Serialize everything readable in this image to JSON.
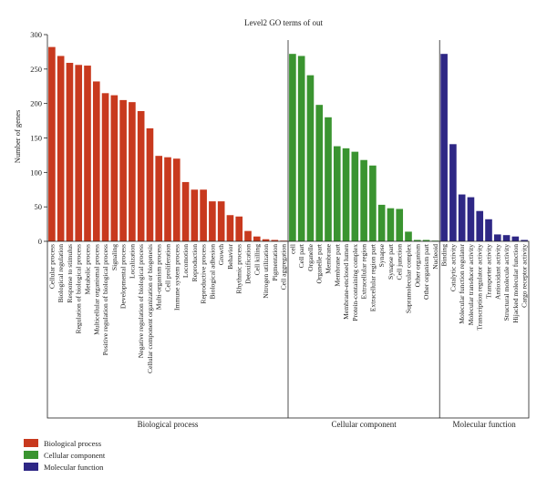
{
  "chart_data": {
    "type": "bar",
    "title": "Level2 GO terms of out",
    "ylabel": "Number of genes",
    "ylim": [
      0,
      300
    ],
    "yticks": [
      0,
      50,
      100,
      150,
      200,
      250,
      300
    ],
    "grid": false,
    "legend_placement": "bottom-left",
    "groups": [
      {
        "name": "Biological process",
        "color": "#c8391e",
        "categories": [
          "Cellular process",
          "Biological regulation",
          "Response to stimulus",
          "Regulation of biological process",
          "Metabolic process",
          "Multicellular organismal process",
          "Positive regulation of biological process",
          "Signaling",
          "Developmental process",
          "Localization",
          "Negative regulation of biological process",
          "Cellular component organization or biogenesis",
          "Multi-organism process",
          "Cell proliferation",
          "Immune system process",
          "Locomotion",
          "Reproduction",
          "Reproductive process",
          "Biological adhesion",
          "Growth",
          "Behavior",
          "Rhythmic process",
          "Detoxification",
          "Cell killing",
          "Nitrogen utilization",
          "Pigmentation",
          "Cell aggregation"
        ],
        "values": [
          282,
          269,
          259,
          256,
          255,
          232,
          215,
          212,
          205,
          202,
          189,
          164,
          124,
          122,
          120,
          86,
          75,
          75,
          58,
          58,
          38,
          36,
          15,
          7,
          3,
          2,
          1
        ]
      },
      {
        "name": "Cellular component",
        "color": "#3a9430",
        "categories": [
          "cell",
          "Cell part",
          "Organelle",
          "Organelle part",
          "Membrane",
          "Membrane part",
          "Membrane-enclosed lumen",
          "Protein-containing complex",
          "Extracellular region",
          "Extracellular region part",
          "Synapse",
          "Synapse part",
          "Cell junction",
          "Supramolecular complex",
          "Other organism",
          "Other organism part",
          "Nucleoid"
        ],
        "values": [
          272,
          269,
          241,
          198,
          180,
          138,
          135,
          130,
          118,
          110,
          53,
          48,
          47,
          14,
          2,
          2,
          1
        ]
      },
      {
        "name": "Molecular function",
        "color": "#2e2785",
        "categories": [
          "Binding",
          "Catalytic activity",
          "Molecular function regulator",
          "Molecular transducer activity",
          "Transcription regulator activity",
          "Transporter activity",
          "Antioxidant activity",
          "Structural molecule activity",
          "Hijacked molecular function",
          "Cargo receptor activity"
        ],
        "values": [
          272,
          141,
          68,
          64,
          44,
          32,
          10,
          9,
          7,
          2
        ]
      }
    ]
  },
  "legend": {
    "items": [
      {
        "label": "Biological process",
        "color": "#c8391e"
      },
      {
        "label": "Cellular component",
        "color": "#3a9430"
      },
      {
        "label": "Molecular function",
        "color": "#2e2785"
      }
    ]
  }
}
